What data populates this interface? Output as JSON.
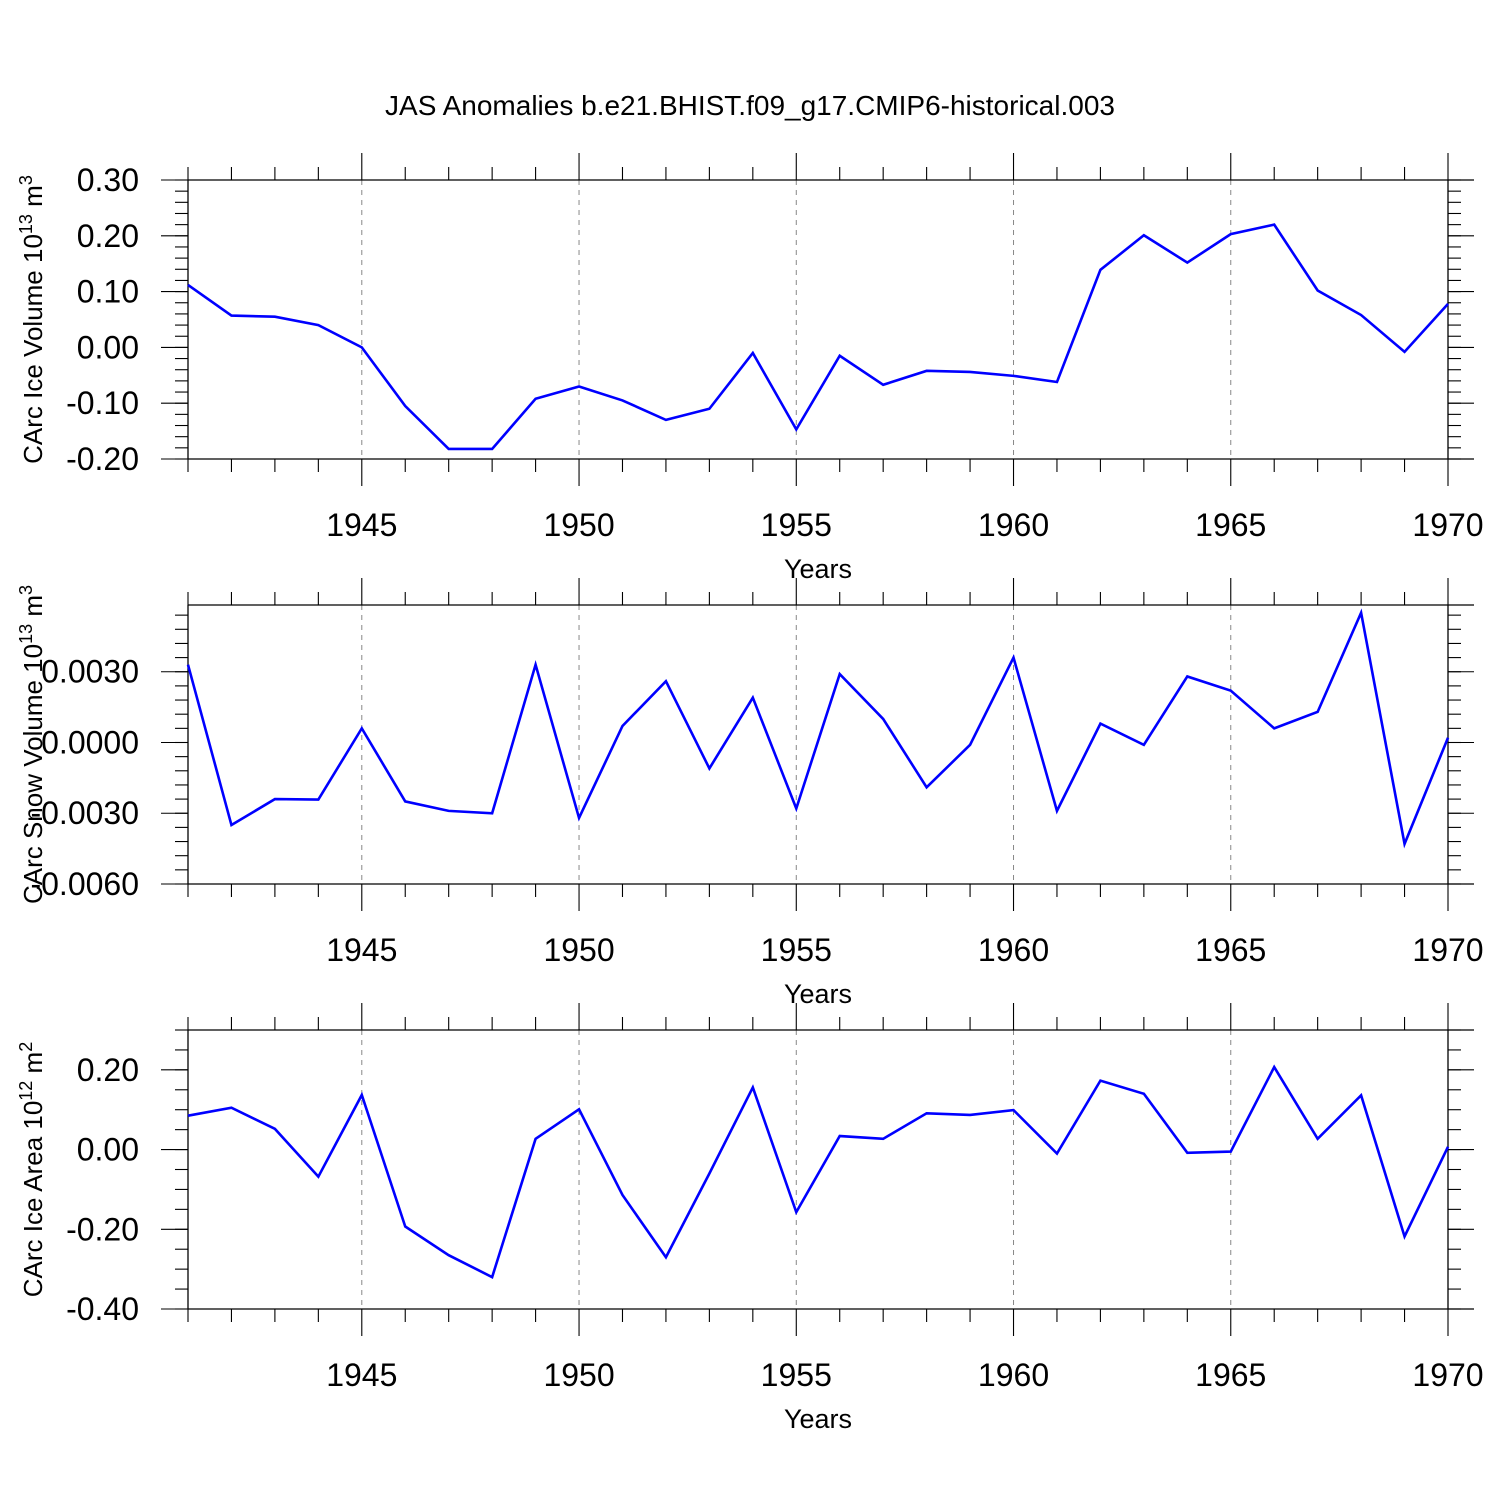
{
  "figure": {
    "title": "JAS Anomalies b.e21.BHIST.f09_g17.CMIP6-historical.003",
    "line_color": "#0000ff"
  },
  "chart_data": [
    {
      "type": "line",
      "xlabel": "Years",
      "ylabel": {
        "base": "CArc Ice Volume 10",
        "exp1": "13",
        "mid": " m",
        "exp2": "3"
      },
      "xlim": [
        1941,
        1970
      ],
      "ylim": [
        -0.2,
        0.3
      ],
      "xticks": [
        1945,
        1950,
        1955,
        1960,
        1965,
        1970
      ],
      "yticks": [
        -0.2,
        -0.1,
        0.0,
        0.1,
        0.2,
        0.3
      ],
      "ytick_labels": [
        "-0.20",
        "-0.10",
        "0.00",
        "0.10",
        "0.20",
        "0.30"
      ],
      "ytick_minor": 0.02,
      "x": [
        1941,
        1942,
        1943,
        1944,
        1945,
        1946,
        1947,
        1948,
        1949,
        1950,
        1951,
        1952,
        1953,
        1954,
        1955,
        1956,
        1957,
        1958,
        1959,
        1960,
        1961,
        1962,
        1963,
        1964,
        1965,
        1966,
        1967,
        1968,
        1969,
        1970
      ],
      "series": [
        {
          "name": "CArc Ice Volume",
          "values": [
            0.112,
            0.057,
            0.055,
            0.04,
            0.0,
            -0.105,
            -0.182,
            -0.182,
            -0.092,
            -0.07,
            -0.095,
            -0.13,
            -0.11,
            -0.01,
            -0.147,
            -0.015,
            -0.067,
            -0.042,
            -0.044,
            -0.051,
            -0.062,
            0.139,
            0.201,
            0.152,
            0.203,
            0.22,
            0.102,
            0.058,
            -0.008,
            0.078
          ]
        }
      ]
    },
    {
      "type": "line",
      "xlabel": "Years",
      "ylabel": {
        "base": "CArc Snow Volume 10",
        "exp1": "13",
        "mid": " m",
        "exp2": "3"
      },
      "xlim": [
        1941,
        1970
      ],
      "ylim": [
        -0.006,
        0.006
      ],
      "xticks": [
        1945,
        1950,
        1955,
        1960,
        1965,
        1970
      ],
      "yticks": [
        -0.006,
        -0.003,
        0.0,
        0.003
      ],
      "ytick_labels": [
        "-0.0060",
        "-0.0030",
        "0.0000",
        "0.0030"
      ],
      "ytick_minor": 0.0006,
      "x": [
        1941,
        1942,
        1943,
        1944,
        1945,
        1946,
        1947,
        1948,
        1949,
        1950,
        1951,
        1952,
        1953,
        1954,
        1955,
        1956,
        1957,
        1958,
        1959,
        1960,
        1961,
        1962,
        1963,
        1964,
        1965,
        1966,
        1967,
        1968,
        1969,
        1970
      ],
      "series": [
        {
          "name": "CArc Snow Volume",
          "values": [
            0.0033,
            -0.0035,
            -0.0024,
            -0.00242,
            0.0006,
            -0.0025,
            -0.0029,
            -0.003,
            0.0033,
            -0.0032,
            0.0007,
            0.0026,
            -0.0011,
            0.0019,
            -0.0028,
            0.0029,
            0.001,
            -0.0019,
            -0.0001,
            0.0036,
            -0.0029,
            0.0008,
            -0.0001,
            0.0028,
            0.0022,
            0.0006,
            0.0013,
            0.0055,
            -0.0043,
            0.0002
          ]
        }
      ]
    },
    {
      "type": "line",
      "xlabel": "Years",
      "ylabel": {
        "base": "CArc Ice Area 10",
        "exp1": "12",
        "mid": " m",
        "exp2": "2"
      },
      "xlim": [
        1941,
        1970
      ],
      "ylim": [
        -0.4,
        0.3
      ],
      "xticks": [
        1945,
        1950,
        1955,
        1960,
        1965,
        1970
      ],
      "yticks": [
        -0.4,
        -0.2,
        0.0,
        0.2
      ],
      "ytick_labels": [
        "-0.40",
        "-0.20",
        "0.00",
        "0.20"
      ],
      "ytick_minor": 0.05,
      "x": [
        1941,
        1942,
        1943,
        1944,
        1945,
        1946,
        1947,
        1948,
        1949,
        1950,
        1951,
        1952,
        1953,
        1954,
        1955,
        1956,
        1957,
        1958,
        1959,
        1960,
        1961,
        1962,
        1963,
        1964,
        1965,
        1966,
        1967,
        1968,
        1969,
        1970
      ],
      "series": [
        {
          "name": "CArc Ice Area",
          "values": [
            0.085,
            0.105,
            0.052,
            -0.068,
            0.137,
            -0.193,
            -0.265,
            -0.32,
            0.027,
            0.101,
            -0.114,
            -0.27,
            -0.06,
            0.156,
            -0.157,
            0.034,
            0.027,
            0.091,
            0.087,
            0.099,
            -0.01,
            0.173,
            0.14,
            -0.008,
            -0.005,
            0.207,
            0.027,
            0.136,
            -0.218,
            0.007
          ]
        }
      ]
    }
  ]
}
